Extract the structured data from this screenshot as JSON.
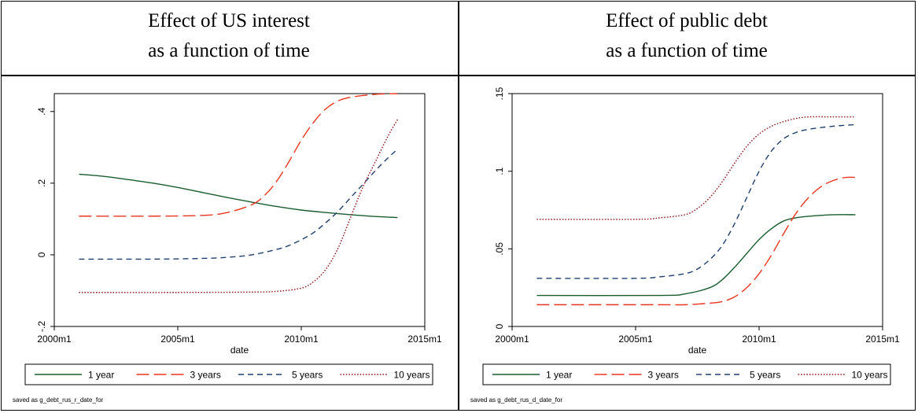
{
  "panels": [
    {
      "title_line1": "Effect of US interest",
      "title_line2": "as a function of time"
    },
    {
      "title_line1": "Effect of public debt",
      "title_line2": "as a function of time"
    }
  ],
  "chart_data": [
    {
      "type": "line",
      "title": "Effect of US interest as a function of time",
      "xlabel": "date",
      "ylabel": "",
      "xlim": [
        2000.0,
        2015.0
      ],
      "ylim": [
        -0.2,
        0.45
      ],
      "xticks": [
        2000,
        2005,
        2010,
        2015
      ],
      "xtick_labels": [
        "2000m1",
        "2005m1",
        "2010m1",
        "2015m1"
      ],
      "yticks": [
        -0.2,
        0,
        0.2,
        0.4
      ],
      "ytick_labels": [
        "-.2",
        "0",
        ".2",
        ".4"
      ],
      "note": "saved as g_debt_rus_r_date_for",
      "legend_position": "bottom",
      "series": [
        {
          "name": "1 year",
          "color": "#1a5c2e",
          "dash": "solid",
          "x": [
            2001.0,
            2002.0,
            2003.0,
            2004.0,
            2005.0,
            2006.0,
            2007.0,
            2008.0,
            2009.0,
            2010.0,
            2011.0,
            2012.0,
            2013.0,
            2013.9
          ],
          "y": [
            0.225,
            0.219,
            0.21,
            0.2,
            0.188,
            0.174,
            0.16,
            0.147,
            0.135,
            0.125,
            0.118,
            0.112,
            0.107,
            0.104
          ]
        },
        {
          "name": "3 years",
          "color": "#e8351f",
          "dash": "long",
          "x": [
            2001.0,
            2004.0,
            2006.0,
            2007.0,
            2008.0,
            2008.5,
            2009.0,
            2009.5,
            2010.0,
            2010.5,
            2011.0,
            2011.5,
            2012.0,
            2013.0,
            2013.9
          ],
          "y": [
            0.108,
            0.108,
            0.11,
            0.118,
            0.14,
            0.165,
            0.205,
            0.26,
            0.32,
            0.37,
            0.408,
            0.43,
            0.44,
            0.448,
            0.45
          ]
        },
        {
          "name": "5 years",
          "color": "#1f3f6e",
          "dash": "short",
          "x": [
            2001.0,
            2004.0,
            2006.0,
            2007.0,
            2008.0,
            2009.0,
            2009.5,
            2010.0,
            2010.5,
            2011.0,
            2011.5,
            2012.0,
            2012.5,
            2013.0,
            2013.5,
            2013.9
          ],
          "y": [
            -0.012,
            -0.012,
            -0.01,
            -0.007,
            0.0,
            0.015,
            0.026,
            0.042,
            0.062,
            0.09,
            0.122,
            0.16,
            0.197,
            0.235,
            0.27,
            0.295
          ]
        },
        {
          "name": "10 years",
          "color": "#8b1a1f",
          "dash": "dotted",
          "x": [
            2001.0,
            2005.0,
            2008.0,
            2009.0,
            2010.0,
            2010.5,
            2011.0,
            2011.5,
            2012.0,
            2012.5,
            2013.0,
            2013.5,
            2013.9
          ],
          "y": [
            -0.105,
            -0.105,
            -0.104,
            -0.102,
            -0.093,
            -0.075,
            -0.04,
            0.02,
            0.105,
            0.19,
            0.26,
            0.33,
            0.378
          ]
        }
      ]
    },
    {
      "type": "line",
      "title": "Effect of public debt as a function of time",
      "xlabel": "date",
      "ylabel": "",
      "xlim": [
        2000.0,
        2015.0
      ],
      "ylim": [
        0,
        0.15
      ],
      "xticks": [
        2000,
        2005,
        2010,
        2015
      ],
      "xtick_labels": [
        "2000m1",
        "2005m1",
        "2010m1",
        "2015m1"
      ],
      "yticks": [
        0,
        0.05,
        0.1,
        0.15
      ],
      "ytick_labels": [
        "0",
        ".05",
        ".1",
        ".15"
      ],
      "note": "saved as g_debt_rus_d_date_for",
      "legend_position": "bottom",
      "series": [
        {
          "name": "1 year",
          "color": "#1a5c2e",
          "dash": "solid",
          "x": [
            2001.0,
            2006.0,
            2007.0,
            2008.0,
            2008.5,
            2009.0,
            2009.5,
            2010.0,
            2010.5,
            2011.0,
            2011.5,
            2012.0,
            2013.0,
            2013.9
          ],
          "y": [
            0.02,
            0.02,
            0.021,
            0.025,
            0.03,
            0.038,
            0.047,
            0.056,
            0.063,
            0.068,
            0.07,
            0.071,
            0.072,
            0.072
          ]
        },
        {
          "name": "3 years",
          "color": "#e8351f",
          "dash": "long",
          "x": [
            2001.0,
            2006.0,
            2007.0,
            2008.0,
            2008.5,
            2009.0,
            2009.5,
            2010.0,
            2010.5,
            2011.0,
            2011.5,
            2012.0,
            2012.5,
            2013.0,
            2013.5,
            2013.9
          ],
          "y": [
            0.014,
            0.014,
            0.014,
            0.015,
            0.016,
            0.019,
            0.025,
            0.034,
            0.046,
            0.06,
            0.073,
            0.083,
            0.09,
            0.094,
            0.096,
            0.096
          ]
        },
        {
          "name": "5 years",
          "color": "#1f3f6e",
          "dash": "short",
          "x": [
            2001.0,
            2005.0,
            2006.0,
            2007.0,
            2007.5,
            2008.0,
            2008.5,
            2009.0,
            2009.5,
            2010.0,
            2010.5,
            2011.0,
            2011.5,
            2012.0,
            2013.0,
            2013.9
          ],
          "y": [
            0.031,
            0.031,
            0.032,
            0.034,
            0.037,
            0.043,
            0.052,
            0.066,
            0.083,
            0.1,
            0.113,
            0.121,
            0.125,
            0.127,
            0.129,
            0.13
          ]
        },
        {
          "name": "10 years",
          "color": "#8b1a1f",
          "dash": "dotted",
          "x": [
            2001.0,
            2005.0,
            2006.0,
            2007.0,
            2007.5,
            2008.0,
            2008.5,
            2009.0,
            2009.5,
            2010.0,
            2010.5,
            2011.0,
            2011.5,
            2012.0,
            2013.0,
            2013.9
          ],
          "y": [
            0.069,
            0.069,
            0.07,
            0.072,
            0.076,
            0.083,
            0.093,
            0.105,
            0.116,
            0.124,
            0.129,
            0.132,
            0.134,
            0.135,
            0.135,
            0.135
          ]
        }
      ]
    }
  ]
}
